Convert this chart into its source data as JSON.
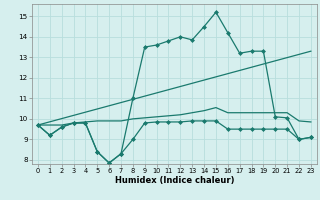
{
  "title": "",
  "xlabel": "Humidex (Indice chaleur)",
  "xlim": [
    -0.5,
    23.5
  ],
  "ylim": [
    7.8,
    15.6
  ],
  "yticks": [
    8,
    9,
    10,
    11,
    12,
    13,
    14,
    15
  ],
  "xticks": [
    0,
    1,
    2,
    3,
    4,
    5,
    6,
    7,
    8,
    9,
    10,
    11,
    12,
    13,
    14,
    15,
    16,
    17,
    18,
    19,
    20,
    21,
    22,
    23
  ],
  "background_color": "#d6efee",
  "line_color": "#1a7a6e",
  "grid_color": "#b8dedd",
  "series": [
    {
      "x": [
        0,
        1,
        2,
        3,
        4,
        5,
        6,
        7,
        8,
        9,
        10,
        11,
        12,
        13,
        14,
        15,
        16,
        17,
        18,
        19,
        20,
        21,
        22,
        23
      ],
      "y": [
        9.7,
        9.2,
        9.6,
        9.8,
        9.8,
        8.4,
        7.85,
        8.3,
        9.0,
        9.8,
        9.85,
        9.85,
        9.85,
        9.9,
        9.9,
        9.9,
        9.5,
        9.5,
        9.5,
        9.5,
        9.5,
        9.5,
        9.0,
        9.1
      ],
      "marker": "D",
      "markersize": 2.0,
      "linewidth": 0.9
    },
    {
      "x": [
        0,
        1,
        2,
        3,
        4,
        5,
        6,
        7,
        8,
        9,
        10,
        11,
        12,
        13,
        14,
        15,
        16,
        17,
        18,
        19,
        20,
        21,
        22,
        23
      ],
      "y": [
        9.7,
        9.2,
        9.6,
        9.8,
        9.8,
        8.4,
        7.85,
        8.3,
        11.0,
        13.5,
        13.6,
        13.8,
        14.0,
        13.85,
        14.5,
        15.2,
        14.2,
        13.2,
        13.3,
        13.3,
        10.1,
        10.05,
        9.0,
        9.1
      ],
      "marker": "D",
      "markersize": 2.0,
      "linewidth": 0.9
    },
    {
      "x": [
        0,
        23
      ],
      "y": [
        9.7,
        13.3
      ],
      "marker": null,
      "markersize": 0,
      "linewidth": 0.9
    },
    {
      "x": [
        0,
        1,
        2,
        3,
        4,
        5,
        6,
        7,
        8,
        9,
        10,
        11,
        12,
        13,
        14,
        15,
        16,
        17,
        18,
        19,
        20,
        21,
        22,
        23
      ],
      "y": [
        9.7,
        9.7,
        9.7,
        9.8,
        9.85,
        9.9,
        9.9,
        9.9,
        10.0,
        10.05,
        10.1,
        10.15,
        10.2,
        10.3,
        10.4,
        10.55,
        10.3,
        10.3,
        10.3,
        10.3,
        10.3,
        10.3,
        9.9,
        9.85
      ],
      "marker": null,
      "markersize": 0,
      "linewidth": 0.9
    }
  ]
}
